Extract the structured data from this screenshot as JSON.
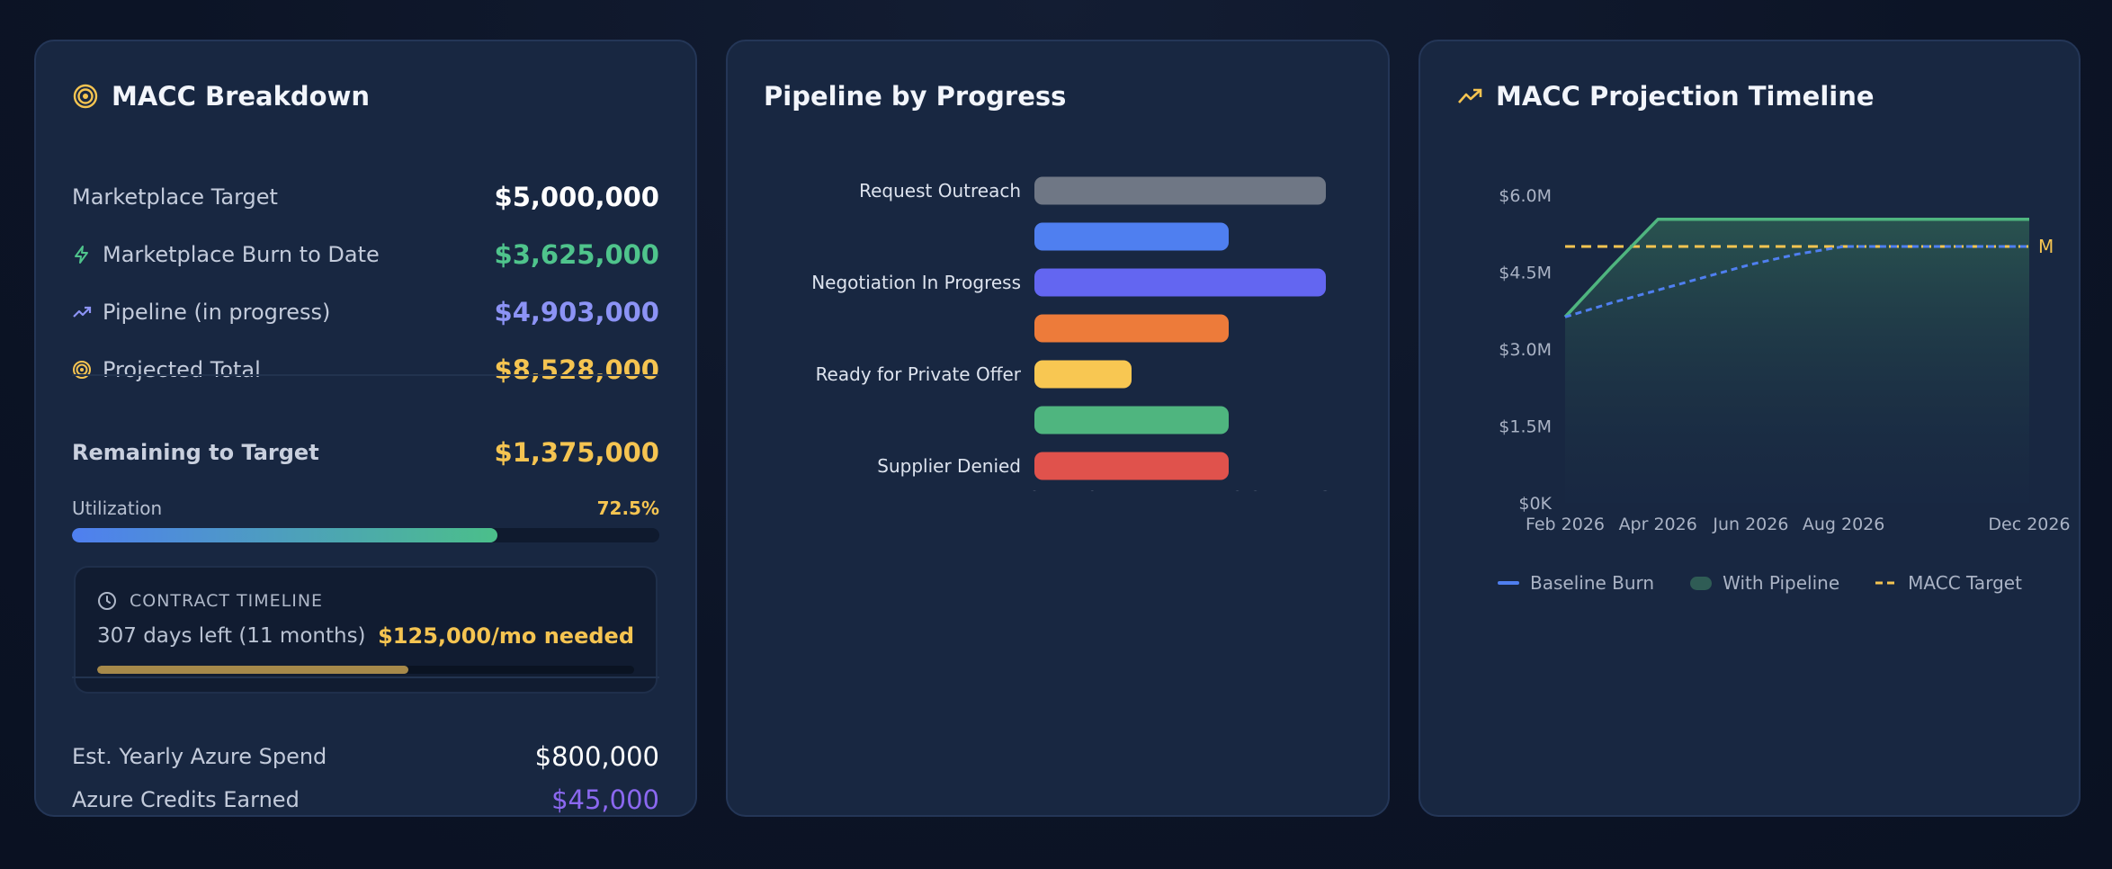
{
  "macc": {
    "title": "MACC Breakdown",
    "rows": [
      {
        "label": "Marketplace Target",
        "value": "$5,000,000",
        "color": "#ffffff"
      },
      {
        "label": "Marketplace Burn to Date",
        "value": "$3,625,000",
        "color": "#4fc48c"
      },
      {
        "label": "Pipeline (in progress)",
        "value": "$4,903,000",
        "color": "#8c93f5"
      },
      {
        "label": "Projected Total",
        "value": "$8,528,000",
        "color": "#f5c451"
      }
    ],
    "remaining": {
      "label": "Remaining to Target",
      "value": "$1,375,000"
    },
    "utilization": {
      "label": "Utilization",
      "percent_text": "72.5%",
      "percent": 72.5
    },
    "contract_timeline": {
      "heading": "CONTRACT TIMELINE",
      "days_left": "307 days left (11 months)",
      "needed": "$125,000/mo needed",
      "progress": 58
    },
    "yearly_spend": {
      "label": "Est. Yearly Azure Spend",
      "value": "$800,000"
    },
    "credits": {
      "label": "Azure Credits Earned",
      "value": "$45,000"
    }
  },
  "pipeline": {
    "title": "Pipeline by Progress",
    "chart_data": {
      "type": "bar",
      "orientation": "horizontal",
      "categories": [
        "Request Outreach",
        "",
        "Negotiation In Progress",
        "",
        "Ready for Private Offer",
        "",
        "Supplier Denied"
      ],
      "values": [
        3,
        2,
        3,
        2,
        1,
        2,
        2
      ],
      "colors": [
        "#6f7785",
        "#4f7ff0",
        "#6366f1",
        "#ed7b3a",
        "#f8c752",
        "#4fb57f",
        "#e0524c"
      ],
      "xlim": [
        0,
        3
      ],
      "xticks": [
        "0",
        "0.75",
        "1.5",
        "2.25",
        "3"
      ]
    }
  },
  "projection": {
    "title": "MACC Projection Timeline",
    "chart_data": {
      "type": "line",
      "x": [
        "Feb 2026",
        "Mar 2026",
        "Apr 2026",
        "May 2026",
        "Jun 2026",
        "Jul 2026",
        "Aug 2026",
        "Sep 2026",
        "Oct 2026",
        "Nov 2026",
        "Dec 2026"
      ],
      "xticks": [
        "Feb 2026",
        "Apr 2026",
        "Jun 2026",
        "Aug 2026",
        "Dec 2026"
      ],
      "yticks": [
        "$6.0M",
        "$4.5M",
        "$3.0M",
        "$1.5M",
        "$0K"
      ],
      "ylim": [
        0,
        6000000
      ],
      "series": [
        {
          "name": "Baseline Burn",
          "color": "#4f7ff0",
          "values": [
            3625000,
            3900000,
            4150000,
            4400000,
            4650000,
            4850000,
            5000000,
            5000000,
            5000000,
            5000000,
            5000000
          ]
        },
        {
          "name": "With Pipeline",
          "color": "#4fb57f",
          "values": [
            3625000,
            4600000,
            5530000,
            5530000,
            5530000,
            5530000,
            5530000,
            5530000,
            5530000,
            5530000,
            5530000
          ]
        },
        {
          "name": "MACC Target",
          "color": "#f5c451",
          "values": [
            5000000,
            5000000,
            5000000,
            5000000,
            5000000,
            5000000,
            5000000,
            5000000,
            5000000,
            5000000,
            5000000
          ]
        }
      ],
      "target_label": "M"
    }
  }
}
